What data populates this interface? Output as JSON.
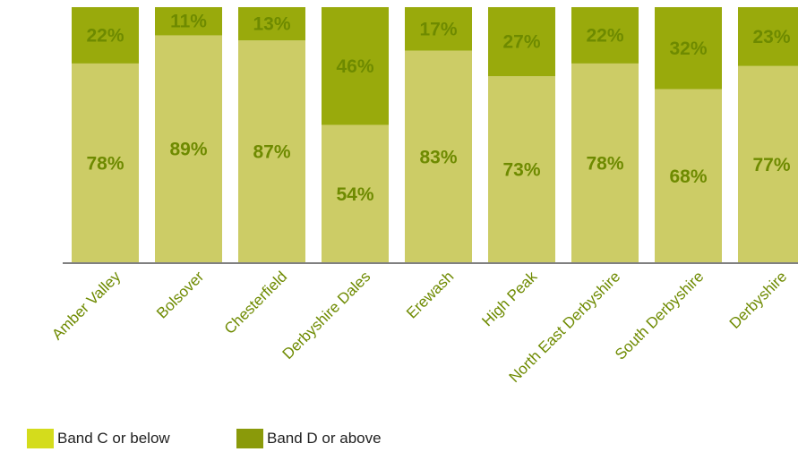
{
  "chart_data": {
    "type": "bar",
    "stacked": true,
    "normalized_percent": true,
    "categories": [
      "Amber Valley",
      "Bolsover",
      "Chesterfield",
      "Derbyshire Dales",
      "Erewash",
      "High Peak",
      "North East Derbyshire",
      "South Derbyshire",
      "Derbyshire"
    ],
    "series": [
      {
        "name": "Band C or below",
        "values": [
          78,
          89,
          87,
          54,
          83,
          73,
          78,
          68,
          77
        ],
        "color": "#cccc66"
      },
      {
        "name": "Band D or above",
        "values": [
          22,
          11,
          13,
          46,
          17,
          27,
          22,
          32,
          23
        ],
        "color": "#99aa0c"
      }
    ],
    "data_labels": {
      "Band C or below": [
        "78%",
        "89%",
        "87%",
        "54%",
        "83%",
        "73%",
        "78%",
        "68%",
        "77%"
      ],
      "Band D or above": [
        "22%",
        "11%",
        "13%",
        "46%",
        "17%",
        "27%",
        "22%",
        "32%",
        "23%"
      ]
    },
    "label_color": "#6e8a00",
    "title": "",
    "xlabel": "",
    "ylabel": "",
    "ylim": [
      0,
      100
    ],
    "grid": false,
    "legend_position": "bottom-left"
  },
  "legend": {
    "items": [
      {
        "label": "Band C or below",
        "color": "#d4dc1c"
      },
      {
        "label": "Band D or above",
        "color": "#8a9a0a"
      }
    ]
  }
}
